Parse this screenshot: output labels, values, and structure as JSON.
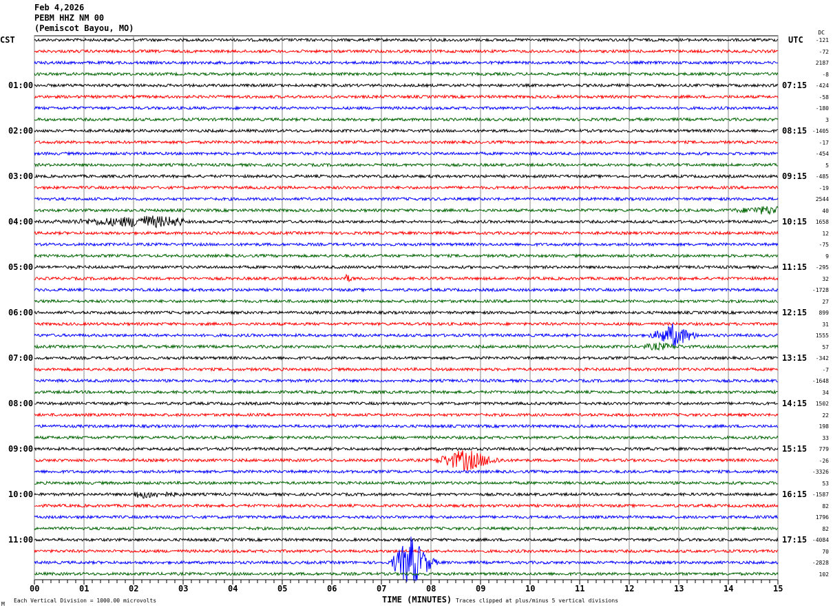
{
  "header": {
    "date": "Feb 4,2026",
    "station": "PEBM HHZ NM 00",
    "location": "(Pemiscot Bayou, MO)"
  },
  "left_tz": "CST",
  "right_tz": "UTC",
  "dc_label": "DC",
  "footer": {
    "scale_note": "Each Vertical Division = 1000.00 microvolts",
    "xlabel": "TIME (MINUTES)",
    "clip_note": "Traces clipped at plus/minus 5 vertical divisions",
    "corner_mark": "M"
  },
  "chart_data": {
    "type": "line",
    "title": "PEBM HHZ NM 00 helicorder",
    "xlabel": "TIME (MINUTES)",
    "xlim": [
      0,
      15
    ],
    "x_ticks": [
      "00",
      "01",
      "02",
      "03",
      "04",
      "05",
      "06",
      "07",
      "08",
      "09",
      "10",
      "11",
      "12",
      "13",
      "14",
      "15"
    ],
    "trace_colors": [
      "#000000",
      "#ff0000",
      "#0000ff",
      "#006400"
    ],
    "left_labels": [
      {
        "row": 0,
        "text": "CST"
      },
      {
        "row": 4,
        "text": "01:00"
      },
      {
        "row": 8,
        "text": "02:00"
      },
      {
        "row": 12,
        "text": "03:00"
      },
      {
        "row": 16,
        "text": "04:00"
      },
      {
        "row": 20,
        "text": "05:00"
      },
      {
        "row": 24,
        "text": "06:00"
      },
      {
        "row": 28,
        "text": "07:00"
      },
      {
        "row": 32,
        "text": "08:00"
      },
      {
        "row": 36,
        "text": "09:00"
      },
      {
        "row": 40,
        "text": "10:00"
      },
      {
        "row": 44,
        "text": "11:00"
      }
    ],
    "right_labels": [
      {
        "row": 0,
        "text": "UTC"
      },
      {
        "row": 4,
        "text": "07:15"
      },
      {
        "row": 8,
        "text": "08:15"
      },
      {
        "row": 12,
        "text": "09:15"
      },
      {
        "row": 16,
        "text": "10:15"
      },
      {
        "row": 20,
        "text": "11:15"
      },
      {
        "row": 24,
        "text": "12:15"
      },
      {
        "row": 28,
        "text": "13:15"
      },
      {
        "row": 32,
        "text": "14:15"
      },
      {
        "row": 36,
        "text": "15:15"
      },
      {
        "row": 40,
        "text": "16:15"
      },
      {
        "row": 44,
        "text": "17:15"
      }
    ],
    "dc_offsets": [
      "-121",
      "-72",
      "2187",
      "-8",
      "-424",
      "-58",
      "-180",
      "3",
      "-1405",
      "-17",
      "-454",
      "5",
      "-485",
      "-19",
      "2544",
      "40",
      "1658",
      "12",
      "-75",
      "9",
      "-295",
      "32",
      "-1728",
      "27",
      "899",
      "31",
      "1555",
      "57",
      "-342",
      "-7",
      "-1648",
      "34",
      "1502",
      "22",
      "198",
      "33",
      "779",
      "-26",
      "-3326",
      "53",
      "-1587",
      "82",
      "1796",
      "82",
      "-4084",
      "70",
      "-2828",
      "102"
    ],
    "noise_level": 0.25,
    "events": [
      {
        "row": 15,
        "start_min": 13.8,
        "end_min": 15.0,
        "peak_min": 14.8,
        "amplitude": 0.6
      },
      {
        "row": 16,
        "start_min": 0.0,
        "end_min": 3.0,
        "peak_min": 2.3,
        "amplitude": 0.9
      },
      {
        "row": 21,
        "start_min": 6.2,
        "end_min": 6.5,
        "peak_min": 6.3,
        "amplitude": 0.5
      },
      {
        "row": 26,
        "start_min": 12.3,
        "end_min": 13.5,
        "peak_min": 12.9,
        "amplitude": 2.0
      },
      {
        "row": 27,
        "start_min": 12.3,
        "end_min": 13.2,
        "peak_min": 12.6,
        "amplitude": 0.5
      },
      {
        "row": 37,
        "start_min": 8.1,
        "end_min": 9.6,
        "peak_min": 8.7,
        "amplitude": 1.8
      },
      {
        "row": 40,
        "start_min": 2.0,
        "end_min": 3.3,
        "peak_min": 2.2,
        "amplitude": 0.5
      },
      {
        "row": 46,
        "start_min": 7.2,
        "end_min": 8.2,
        "peak_min": 7.6,
        "amplitude": 4.5
      }
    ]
  }
}
